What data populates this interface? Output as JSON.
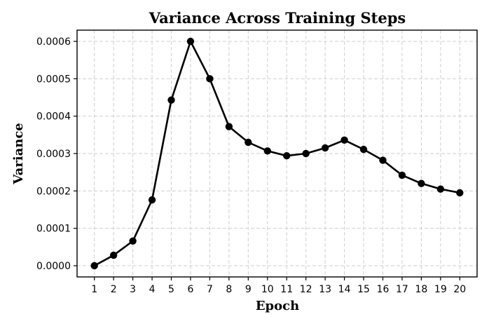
{
  "chart_data": {
    "type": "line",
    "title": "Variance Across Training Steps",
    "xlabel": "Epoch",
    "ylabel": "Variance",
    "x": [
      1,
      2,
      3,
      4,
      5,
      6,
      7,
      8,
      9,
      10,
      11,
      12,
      13,
      14,
      15,
      16,
      17,
      18,
      19,
      20
    ],
    "x_tick_labels": [
      "1",
      "2",
      "3",
      "4",
      "5",
      "6",
      "7",
      "8",
      "9",
      "10",
      "11",
      "12",
      "13",
      "14",
      "15",
      "16",
      "17",
      "18",
      "19",
      "20"
    ],
    "y_ticks": [
      0.0,
      0.0001,
      0.0002,
      0.0003,
      0.0004,
      0.0005,
      0.0006
    ],
    "y_tick_labels": [
      "0.0000",
      "0.0001",
      "0.0002",
      "0.0003",
      "0.0004",
      "0.0005",
      "0.0006"
    ],
    "xlim": [
      0.1,
      20.9
    ],
    "ylim": [
      -3e-05,
      0.00063
    ],
    "grid": true,
    "series": [
      {
        "color": "#000000",
        "marker": "circle",
        "values": [
          0.0,
          2.8e-05,
          6.6e-05,
          0.000176,
          0.000443,
          0.0006,
          0.0005,
          0.000372,
          0.00033,
          0.000307,
          0.000294,
          0.0003,
          0.000315,
          0.000336,
          0.000311,
          0.000282,
          0.000242,
          0.00022,
          0.000205,
          0.000195
        ]
      }
    ]
  }
}
